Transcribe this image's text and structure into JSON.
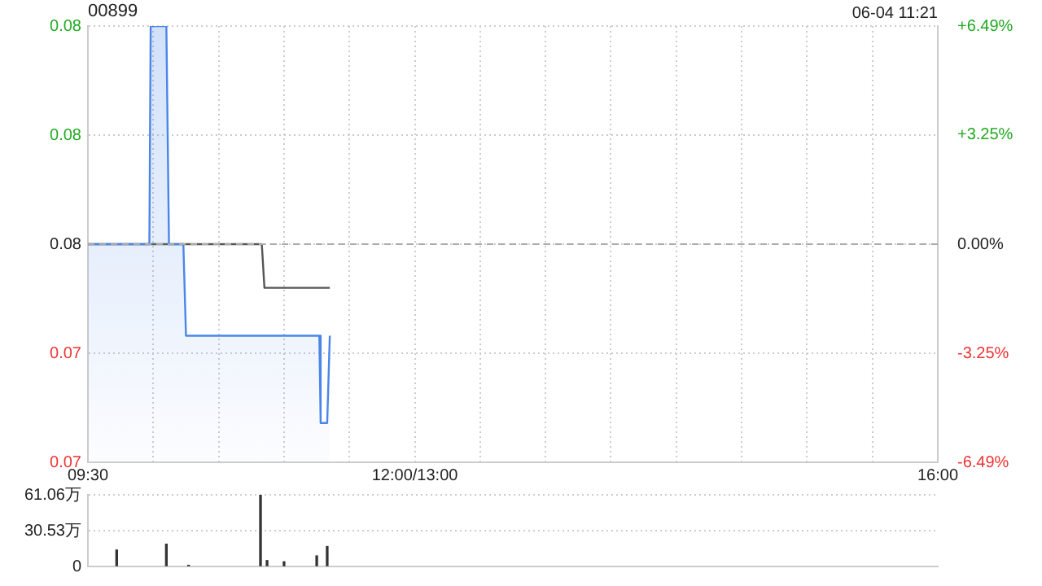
{
  "chart_data": [
    {
      "type": "line",
      "title": "00899",
      "annotations": [
        "06-04 11:21"
      ],
      "series": [
        {
          "type": "area",
          "color": "#4a86e8",
          "x": [
            9.5,
            9.97,
            9.98,
            10.1,
            10.12,
            10.23,
            10.25,
            11.27,
            11.28,
            11.33,
            11.35
          ],
          "values": [
            0.077,
            0.077,
            0.082,
            0.082,
            0.077,
            0.077,
            0.0749,
            0.0749,
            0.0729,
            0.0729,
            0.0749
          ]
        },
        {
          "type": "line",
          "color": "#555555",
          "x": [
            9.5,
            10.83,
            10.85,
            11.35
          ],
          "values": [
            0.077,
            0.077,
            0.076,
            0.076
          ]
        }
      ],
      "xlim": [
        9.5,
        16
      ],
      "xticks": [
        {
          "value": 9.5,
          "label": "09:30"
        },
        {
          "value": 10,
          "label": null
        },
        {
          "value": 10.5,
          "label": null
        },
        {
          "value": 11,
          "label": null
        },
        {
          "value": 11.5,
          "label": null
        },
        {
          "value": 12,
          "label": "12:00/13:00"
        },
        {
          "value": 12.5,
          "label": null
        },
        {
          "value": 13,
          "label": null
        },
        {
          "value": 13.5,
          "label": null
        },
        {
          "value": 14,
          "label": null
        },
        {
          "value": 14.5,
          "label": null
        },
        {
          "value": 15,
          "label": null
        },
        {
          "value": 15.5,
          "label": null
        },
        {
          "value": 16,
          "label": "16:00"
        }
      ],
      "ylim": [
        0.072,
        0.082
      ],
      "yticks": [
        {
          "value": 0.072,
          "label": "0.07"
        },
        {
          "value": 0.0745,
          "label": "0.07"
        },
        {
          "value": 0.077,
          "label": "0.08"
        },
        {
          "value": 0.0795,
          "label": "0.08"
        },
        {
          "value": 0.082,
          "label": "0.08"
        }
      ],
      "y2lim": [
        -6.49,
        6.49
      ],
      "y2ticks": [
        {
          "value": -6.49,
          "label": "-6.49%"
        },
        {
          "value": -3.25,
          "label": "-3.25%"
        },
        {
          "value": 0,
          "label": "0.00%"
        },
        {
          "value": 3.25,
          "label": "+3.25%"
        },
        {
          "value": 6.49,
          "label": "+6.49%"
        }
      ],
      "ref_lines": [
        {
          "axis": "y",
          "value": 0.077,
          "color": "#aaaaaa",
          "line_style": "dashed"
        }
      ],
      "grid": true,
      "legend": false,
      "marker": "none"
    },
    {
      "type": "bar",
      "color": "#333333",
      "x": [
        9.72,
        10.1,
        10.27,
        10.82,
        10.87,
        11,
        11.25,
        11.33
      ],
      "values": [
        14,
        19,
        1,
        61,
        5,
        4,
        9,
        17
      ],
      "xlim": [
        9.5,
        16
      ],
      "ylim": [
        0,
        61.06
      ],
      "yticks": [
        0,
        {
          "value": 30.53,
          "label": "30.53万"
        },
        {
          "value": 61.06,
          "label": "61.06万"
        }
      ],
      "grid": "y",
      "legend": false,
      "tick_labels": "y"
    }
  ]
}
